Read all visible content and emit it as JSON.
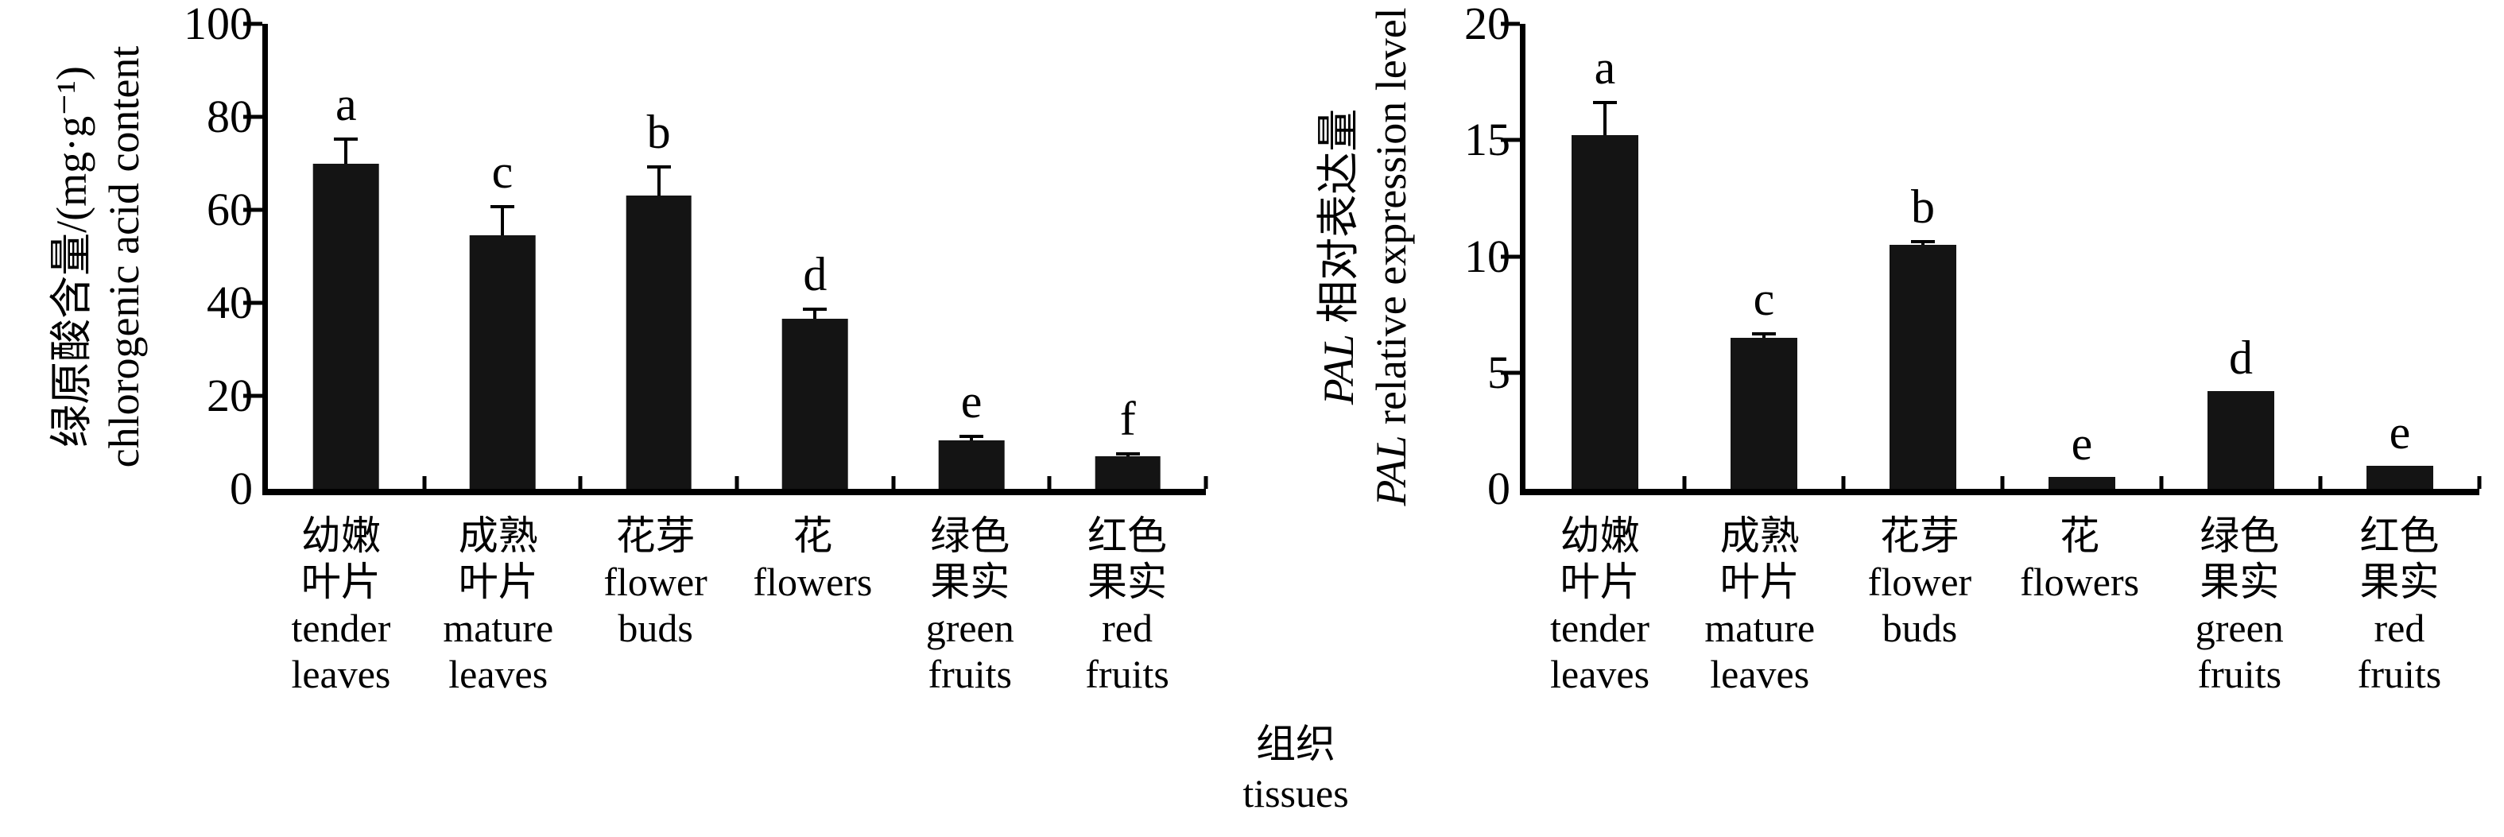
{
  "colors": {
    "bar": "#141414",
    "axis": "#000000",
    "text": "#000000",
    "background": "#ffffff"
  },
  "x_axis_title": {
    "label_cn": "组织",
    "label_en": "tissues"
  },
  "chart_data": [
    {
      "type": "bar",
      "name": "chlorogenic-acid-content",
      "ylabel_lines": [
        [
          {
            "t": "绿原酸含量/(mg·g⁻¹)",
            "i": false
          }
        ],
        [
          {
            "t": "chlorogenic acid content",
            "i": false
          }
        ]
      ],
      "ylabel_cn": "绿原酸含量/(mg·g⁻¹)",
      "ylabel_en": "chlorogenic acid content",
      "xlabel_cn": "组织",
      "xlabel_en": "tissues",
      "ylim": [
        0,
        100
      ],
      "yticks": [
        0,
        20,
        40,
        60,
        80,
        100
      ],
      "grid": false,
      "legend": false,
      "categories_cn": [
        "幼嫩叶片",
        "成熟叶片",
        "花芽",
        "花",
        "绿色果实",
        "红色果实"
      ],
      "categories_en": [
        "tender leaves",
        "mature leaves",
        "flower buds",
        "flowers",
        "green fruits",
        "red fruits"
      ],
      "label_lines": [
        [
          "幼嫩",
          "叶片",
          "tender",
          "leaves"
        ],
        [
          "成熟",
          "叶片",
          "mature",
          "leaves"
        ],
        [
          "花芽",
          "flower",
          "buds"
        ],
        [
          "花",
          "flowers"
        ],
        [
          "绿色",
          "果实",
          "green",
          "fruits"
        ],
        [
          "红色",
          "果实",
          "red",
          "fruits"
        ]
      ],
      "values": [
        70,
        54.5,
        63,
        36.5,
        10.5,
        7
      ],
      "errors": [
        5.5,
        6.5,
        6.5,
        2.5,
        1.2,
        0.9
      ],
      "sig_letters": [
        "a",
        "c",
        "b",
        "d",
        "e",
        "f"
      ]
    },
    {
      "type": "bar",
      "name": "pal-relative-expression-level",
      "ylabel_lines": [
        [
          {
            "t": "PAL",
            "i": true
          },
          {
            "t": " 相对表达量",
            "i": false
          }
        ],
        [
          {
            "t": "PAL",
            "i": true
          },
          {
            "t": " relative expression level",
            "i": false
          }
        ]
      ],
      "ylabel_cn": "PAL 相对表达量",
      "ylabel_en": "PAL relative expression level",
      "xlabel_cn": "组织",
      "xlabel_en": "tissues",
      "ylim": [
        0,
        20
      ],
      "yticks": [
        0,
        5,
        10,
        15,
        20
      ],
      "grid": false,
      "legend": false,
      "categories_cn": [
        "幼嫩叶片",
        "成熟叶片",
        "花芽",
        "花",
        "绿色果实",
        "红色果实"
      ],
      "categories_en": [
        "tender leaves",
        "mature leaves",
        "flower buds",
        "flowers",
        "green fruits",
        "red fruits"
      ],
      "label_lines": [
        [
          "幼嫩",
          "叶片",
          "tender",
          "leaves"
        ],
        [
          "成熟",
          "叶片",
          "mature",
          "leaves"
        ],
        [
          "花芽",
          "flower",
          "buds"
        ],
        [
          "花",
          "flowers"
        ],
        [
          "绿色",
          "果实",
          "green",
          "fruits"
        ],
        [
          "红色",
          "果实",
          "red",
          "fruits"
        ]
      ],
      "values": [
        15.2,
        6.5,
        10.5,
        0.5,
        4.2,
        1.0
      ],
      "errors": [
        1.5,
        0.25,
        0.2,
        0,
        0,
        0
      ],
      "sig_letters": [
        "a",
        "c",
        "b",
        "e",
        "d",
        "e"
      ]
    }
  ]
}
